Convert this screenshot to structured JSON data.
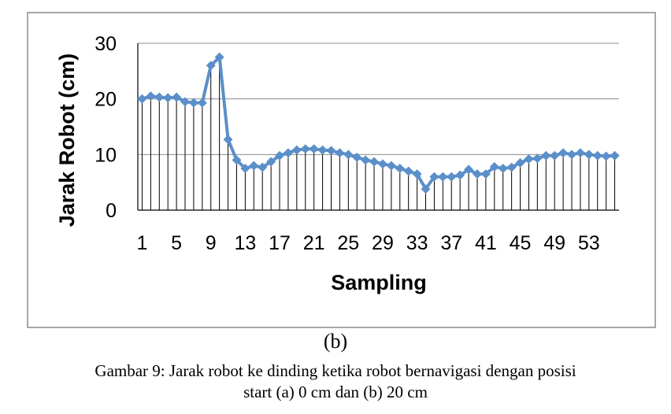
{
  "chart_data": {
    "type": "line",
    "xlabel": "Sampling",
    "ylabel": "Jarak Robot (cm)",
    "ylim": [
      0,
      30
    ],
    "yticks": [
      0,
      10,
      20,
      30
    ],
    "x_tick_labels": [
      "1",
      "5",
      "9",
      "13",
      "17",
      "21",
      "25",
      "29",
      "33",
      "37",
      "41",
      "45",
      "49",
      "53"
    ],
    "grid": true,
    "legend": "none",
    "series_color": "#5b8fc9",
    "series": [
      {
        "x": [
          1,
          2,
          3,
          4,
          5,
          6,
          7,
          8,
          9,
          10,
          11,
          12,
          13,
          14,
          15,
          16,
          17,
          18,
          19,
          20,
          21,
          22,
          23,
          24,
          25,
          26,
          27,
          28,
          29,
          30,
          31,
          32,
          33,
          34,
          35,
          36,
          37,
          38,
          39,
          40,
          41,
          42,
          43,
          44,
          45,
          46,
          47,
          48,
          49,
          50,
          51,
          52,
          53,
          54,
          55,
          56
        ],
        "values": [
          20,
          20.5,
          20.3,
          20.2,
          20.3,
          19.5,
          19.3,
          19.3,
          26,
          27.5,
          12.7,
          9,
          7.5,
          8,
          7.7,
          8.7,
          9.8,
          10.3,
          10.8,
          11,
          11,
          10.8,
          10.7,
          10.3,
          10,
          9.5,
          9,
          8.7,
          8.3,
          8,
          7.5,
          7,
          6.5,
          3.8,
          6,
          6,
          6,
          6.3,
          7.3,
          6.5,
          6.5,
          7.8,
          7.5,
          7.7,
          8.5,
          9.2,
          9.3,
          9.8,
          9.8,
          10.3,
          10,
          10.3,
          10,
          9.8,
          9.7,
          9.8
        ]
      }
    ]
  },
  "panel_label": "(b)",
  "caption": {
    "line1": "Gambar 9: Jarak robot ke dinding ketika robot bernavigasi dengan posisi",
    "line2": "start (a) 0 cm dan (b) 20 cm"
  }
}
